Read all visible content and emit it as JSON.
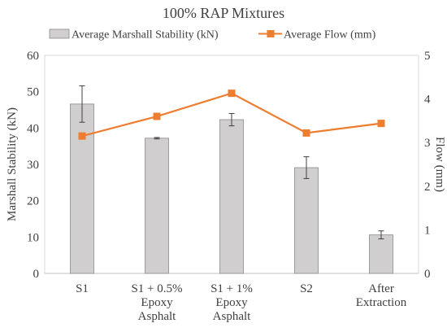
{
  "chart_data": {
    "type": "bar",
    "title": "100% RAP Mixtures",
    "categories": [
      [
        "S1"
      ],
      [
        "S1 + 0.5%",
        "Epoxy",
        "Asphalt"
      ],
      [
        "S1 + 1%",
        "Epoxy",
        "Asphalt"
      ],
      [
        "S2"
      ],
      [
        "After",
        "Extraction"
      ]
    ],
    "series": [
      {
        "name": "Average Marshall Stability (kN)",
        "type": "bar",
        "axis": "left",
        "color": "#d0cece",
        "values": [
          46.6,
          37.2,
          42.3,
          29.1,
          10.6
        ],
        "error": [
          5.0,
          0.2,
          1.7,
          3.0,
          1.1
        ]
      },
      {
        "name": "Average Flow (mm)",
        "type": "line",
        "axis": "right",
        "color": "#ed7d31",
        "values": [
          3.15,
          3.6,
          4.13,
          3.22,
          3.44
        ]
      }
    ],
    "ylabel": "Marshall Stability (kN)",
    "y2label": "Flow (mm)",
    "ylim": [
      0,
      60
    ],
    "y2lim": [
      0,
      5
    ],
    "yticks": [
      0,
      10,
      20,
      30,
      40,
      50,
      60
    ],
    "y2ticks": [
      0,
      1,
      2,
      3,
      4,
      5
    ],
    "legend": "top",
    "grid": false
  }
}
